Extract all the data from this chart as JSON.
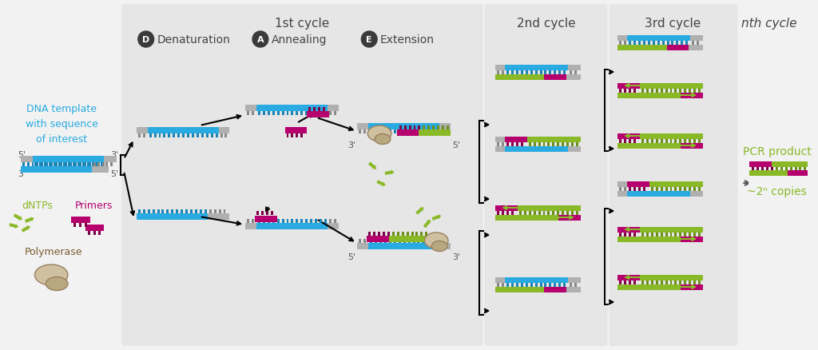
{
  "bg_color": "#f2f2f2",
  "left_bg": "#f2f2f2",
  "panel_bg": "#e6e6e6",
  "cyan": "#29ABE2",
  "gray_strand": "#b0b0b0",
  "magenta": "#b5006e",
  "green": "#8ab928",
  "green_light": "#a5cc3a",
  "brown_light": "#c8b08c",
  "brown_dark": "#7a5c30",
  "title_color": "#444444",
  "green_text": "#8ab928",
  "cyan_text": "#29ABE2",
  "magenta_text": "#b5006e",
  "brown_text": "#7a5c30",
  "title": "1st cycle",
  "cycle2": "2nd cycle",
  "cycle3": "3rd cycle",
  "cycleN": "nth cycle",
  "step1": "Denaturation",
  "step2": "Annealing",
  "step3": "Extension",
  "dna_label": "DNA template\nwith sequence\nof interest",
  "dntps_label": "dNTPs",
  "primers_label": "Primers",
  "polymerase_label": "Polymerase",
  "pcr_product": "PCR product",
  "copies": "~2ⁿ copies",
  "fig_width": 10.24,
  "fig_height": 4.39
}
